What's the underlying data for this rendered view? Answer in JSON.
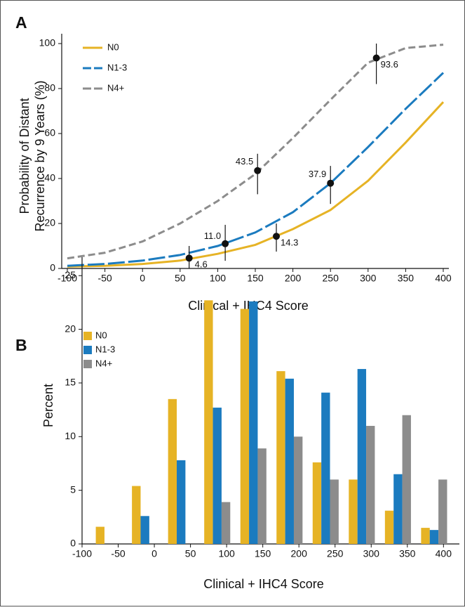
{
  "chart_data": [
    {
      "type": "line",
      "label": "A",
      "xlabel": "Clinical + IHC4 Score",
      "ylabel": [
        "Probability of Distant",
        "Recurrence by 9 Years (%)"
      ],
      "x": [
        -100,
        -50,
        0,
        50,
        100,
        150,
        200,
        250,
        300,
        350,
        400
      ],
      "series": [
        {
          "name": "N0",
          "color": "#e6b325",
          "linestyle": "solid",
          "values": [
            0.8,
            1.2,
            2.0,
            3.5,
            6.5,
            10.5,
            17.5,
            26,
            39,
            56,
            74
          ]
        },
        {
          "name": "N1-3",
          "color": "#1b7bbf",
          "linestyle": "long-dash",
          "values": [
            1.2,
            2.0,
            3.5,
            6,
            10,
            16,
            25,
            37.9,
            54,
            71,
            87
          ]
        },
        {
          "name": "N4+",
          "color": "#8c8c8c",
          "linestyle": "dashed",
          "values": [
            4.5,
            7,
            12,
            20,
            30,
            42,
            58,
            75,
            91.5,
            98,
            99.5
          ]
        }
      ],
      "markers": {
        "x": [
          62,
          178,
          110,
          250,
          153,
          311
        ],
        "values": [
          4.6,
          14.3,
          11.0,
          37.9,
          43.5,
          93.6
        ],
        "value_labels": [
          "4.6",
          "14.3",
          "11.0",
          "37.9",
          "43.5",
          "93.6"
        ],
        "ci_low": [
          0,
          7.5,
          3.4,
          28.7,
          33,
          82
        ],
        "ci_high": [
          10,
          20,
          19.4,
          45.6,
          51,
          100
        ]
      },
      "xlim": [
        -100,
        400
      ],
      "ylim": [
        0,
        100
      ],
      "xticks": [
        -100,
        -50,
        0,
        50,
        100,
        150,
        200,
        250,
        300,
        350,
        400
      ],
      "yticks": [
        0,
        20,
        40,
        60,
        80,
        100
      ],
      "legend": "upper-left"
    },
    {
      "type": "bar",
      "label": "B",
      "xlabel": "Clinical + IHC4 Score",
      "ylabel": [
        "Percent"
      ],
      "x": [
        -75,
        -25,
        25,
        75,
        125,
        175,
        225,
        275,
        325,
        375
      ],
      "series": [
        {
          "name": "N0",
          "color": "#e6b325",
          "values": [
            1.6,
            5.4,
            13.5,
            22.7,
            21.9,
            16.1,
            7.6,
            6.0,
            3.1,
            1.5
          ]
        },
        {
          "name": "N1-3",
          "color": "#1b7bbf",
          "values": [
            0,
            2.6,
            7.8,
            12.7,
            22.6,
            15.4,
            14.1,
            16.3,
            6.5,
            1.3
          ]
        },
        {
          "name": "N4+",
          "color": "#8c8c8c",
          "values": [
            0,
            0,
            0,
            3.9,
            8.9,
            10.0,
            6.0,
            11.0,
            12.0,
            6.0
          ]
        }
      ],
      "xlim": [
        -100,
        422
      ],
      "ylim": [
        0,
        25.8
      ],
      "xticks": [
        -100,
        -50,
        0,
        50,
        100,
        150,
        200,
        250,
        300,
        350,
        400
      ],
      "yticks": [
        0,
        5,
        10,
        15,
        20,
        25
      ],
      "legend": "upper-left"
    }
  ]
}
